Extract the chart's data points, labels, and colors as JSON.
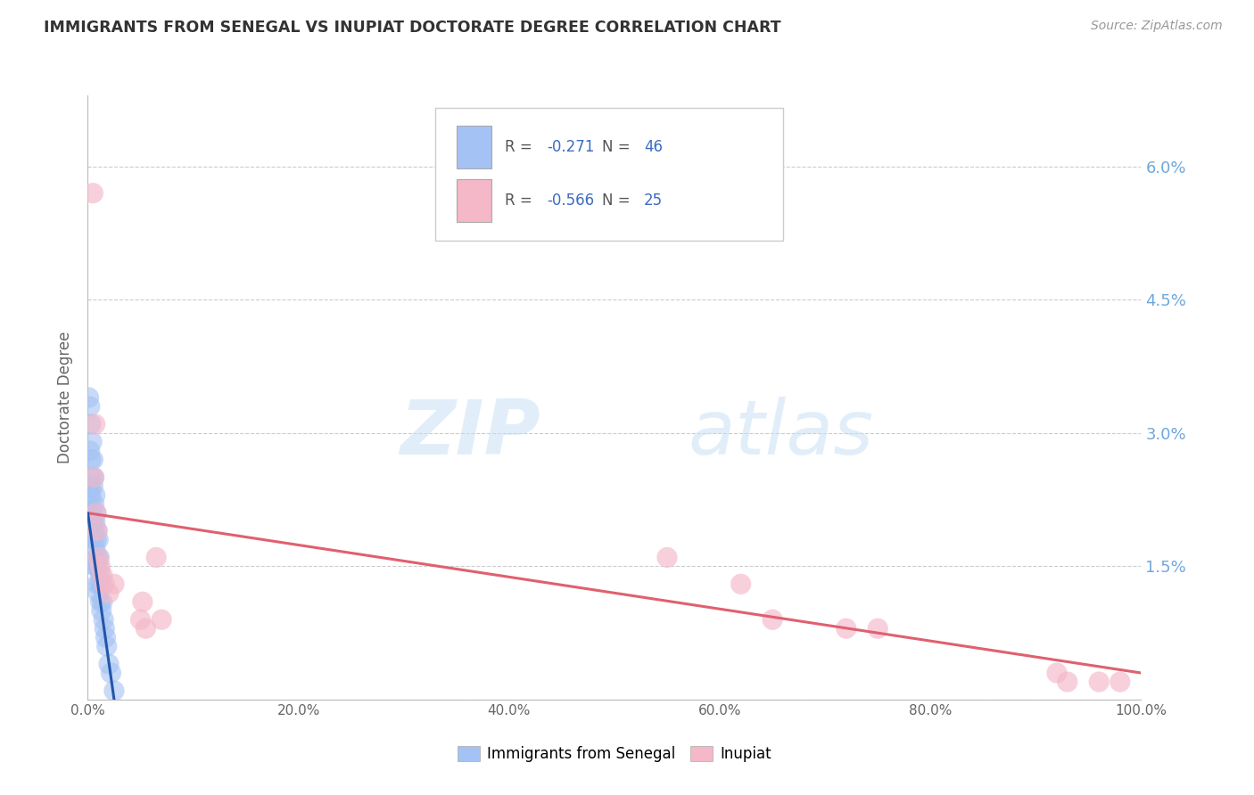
{
  "title": "IMMIGRANTS FROM SENEGAL VS INUPIAT DOCTORATE DEGREE CORRELATION CHART",
  "source": "Source: ZipAtlas.com",
  "ylabel": "Doctorate Degree",
  "xlim": [
    0,
    1.0
  ],
  "ylim": [
    0,
    0.068
  ],
  "yticks": [
    0.0,
    0.015,
    0.03,
    0.045,
    0.06
  ],
  "ytick_labels": [
    "",
    "1.5%",
    "3.0%",
    "4.5%",
    "6.0%"
  ],
  "xticks": [
    0.0,
    0.2,
    0.4,
    0.6,
    0.8,
    1.0
  ],
  "xtick_labels": [
    "0.0%",
    "20.0%",
    "40.0%",
    "60.0%",
    "80.0%",
    "100.0%"
  ],
  "legend_r1": "-0.271",
  "legend_n1": "46",
  "legend_r2": "-0.566",
  "legend_n2": "25",
  "color_blue": "#a4c2f4",
  "color_pink": "#f4b8c8",
  "color_legend_text": "#3d6bc4",
  "color_ytick": "#6fa8dc",
  "watermark_zip": "ZIP",
  "watermark_atlas": "atlas",
  "blue_scatter_x": [
    0.001,
    0.001,
    0.002,
    0.002,
    0.002,
    0.003,
    0.003,
    0.003,
    0.003,
    0.004,
    0.004,
    0.004,
    0.005,
    0.005,
    0.005,
    0.005,
    0.006,
    0.006,
    0.006,
    0.007,
    0.007,
    0.007,
    0.007,
    0.008,
    0.008,
    0.008,
    0.009,
    0.009,
    0.009,
    0.01,
    0.01,
    0.01,
    0.011,
    0.011,
    0.012,
    0.012,
    0.013,
    0.013,
    0.014,
    0.015,
    0.016,
    0.017,
    0.018,
    0.02,
    0.022,
    0.025
  ],
  "blue_scatter_y": [
    0.034,
    0.022,
    0.033,
    0.028,
    0.024,
    0.031,
    0.027,
    0.023,
    0.02,
    0.029,
    0.025,
    0.021,
    0.027,
    0.024,
    0.02,
    0.018,
    0.025,
    0.022,
    0.019,
    0.023,
    0.02,
    0.017,
    0.015,
    0.021,
    0.018,
    0.015,
    0.019,
    0.016,
    0.013,
    0.018,
    0.015,
    0.012,
    0.016,
    0.013,
    0.014,
    0.011,
    0.013,
    0.01,
    0.011,
    0.009,
    0.008,
    0.007,
    0.006,
    0.004,
    0.003,
    0.001
  ],
  "pink_scatter_x": [
    0.005,
    0.006,
    0.007,
    0.008,
    0.009,
    0.01,
    0.012,
    0.014,
    0.016,
    0.02,
    0.025,
    0.05,
    0.052,
    0.055,
    0.065,
    0.07,
    0.55,
    0.62,
    0.65,
    0.72,
    0.75,
    0.92,
    0.93,
    0.96,
    0.98
  ],
  "pink_scatter_y": [
    0.057,
    0.025,
    0.031,
    0.021,
    0.019,
    0.016,
    0.015,
    0.014,
    0.013,
    0.012,
    0.013,
    0.009,
    0.011,
    0.008,
    0.016,
    0.009,
    0.016,
    0.013,
    0.009,
    0.008,
    0.008,
    0.003,
    0.002,
    0.002,
    0.002
  ],
  "blue_trend_x": [
    0.0,
    0.025
  ],
  "blue_trend_y": [
    0.021,
    0.0
  ],
  "pink_trend_x": [
    0.0,
    1.0
  ],
  "pink_trend_y": [
    0.021,
    0.003
  ]
}
